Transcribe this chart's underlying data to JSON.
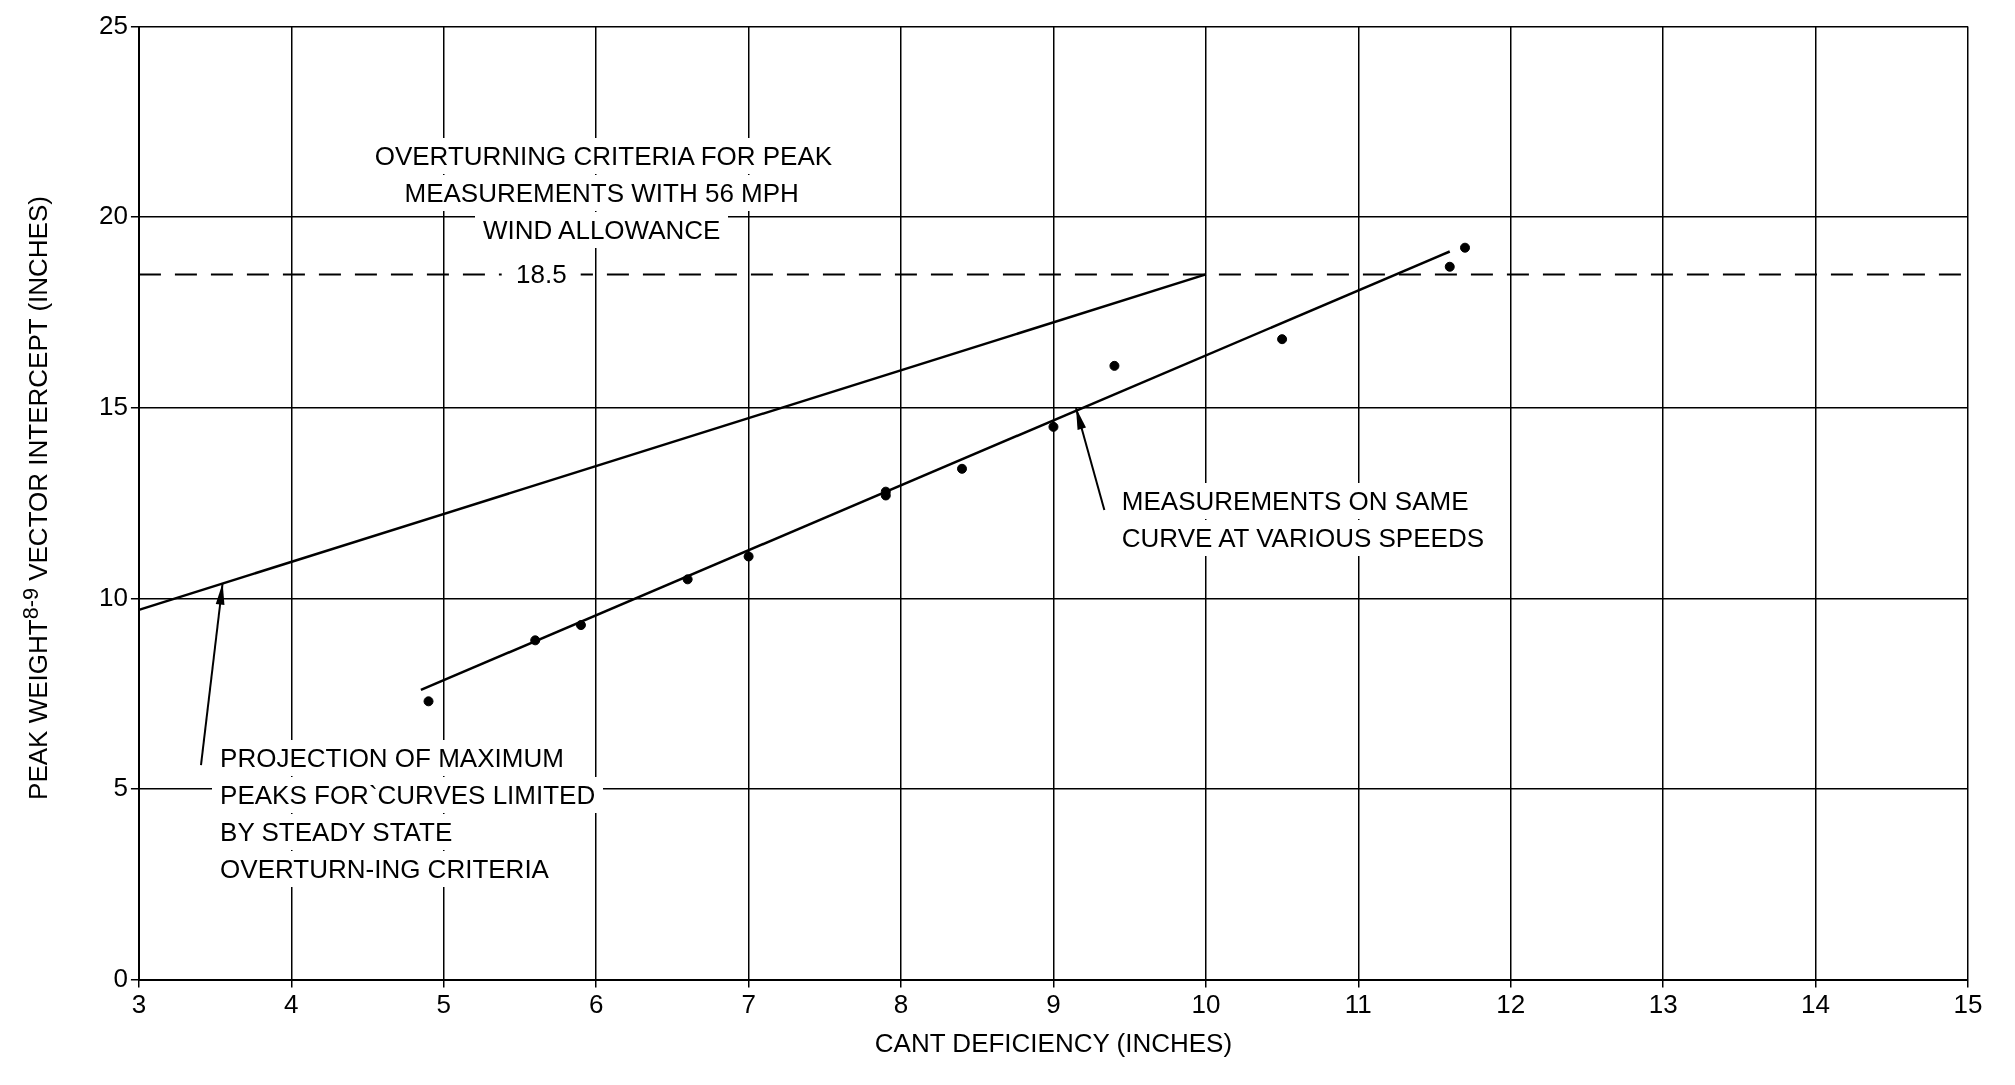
{
  "chart_data": {
    "type": "scatter",
    "xlabel": "CANT DEFICIENCY (INCHES)",
    "ylabel": "PEAK WEIGHT$^{8-9}$ VECTOR INTERCEPT (INCHES)",
    "xlim": [
      3,
      15
    ],
    "xticks": [
      3,
      4,
      5,
      6,
      7,
      8,
      9,
      10,
      11,
      12,
      13,
      14,
      15
    ],
    "ylim": [
      0,
      25
    ],
    "yticks": [
      0,
      5,
      10,
      15,
      20,
      25
    ],
    "grid": true,
    "marker": "circle",
    "series": [
      {
        "type": "scatter",
        "color": "#000000",
        "x": [
          4.9,
          5.6,
          5.9,
          6.6,
          7.0,
          7.9,
          7.9,
          8.4,
          9.0,
          9.4,
          10.5,
          11.6,
          11.7
        ],
        "values": [
          7.3,
          8.9,
          9.3,
          10.5,
          11.1,
          12.8,
          12.7,
          13.4,
          14.5,
          16.1,
          16.8,
          18.7,
          19.2
        ]
      },
      {
        "type": "line",
        "marker": "none",
        "color": "#000000",
        "x": [
          4.85,
          11.6
        ],
        "values": [
          7.6,
          19.1
        ]
      },
      {
        "type": "line",
        "marker": "none",
        "color": "#000000",
        "x": [
          3,
          10
        ],
        "values": [
          9.7,
          18.5
        ]
      }
    ],
    "ref_lines": [
      {
        "axis": "y",
        "value": 18.5,
        "label": "18.5",
        "line_style": "dashed",
        "color": "#000000"
      }
    ],
    "annotations": [
      "OVERTURNING CRITERIA FOR PEAK MEASUREMENTS WITH 56 MPH WIND ALLOWANCE",
      {
        "text": "PROJECTION OF MAXIMUM PEAKS FOR`CURVES LIMITED BY STEADY STATE OVERTURN-ING CRITERIA",
        "x": 3.55,
        "y": 10.4
      },
      {
        "text": "MEASUREMENTS ON SAME CURVE AT VARIOUS SPEEDS",
        "x": 9.15,
        "y": 15.0
      }
    ]
  }
}
